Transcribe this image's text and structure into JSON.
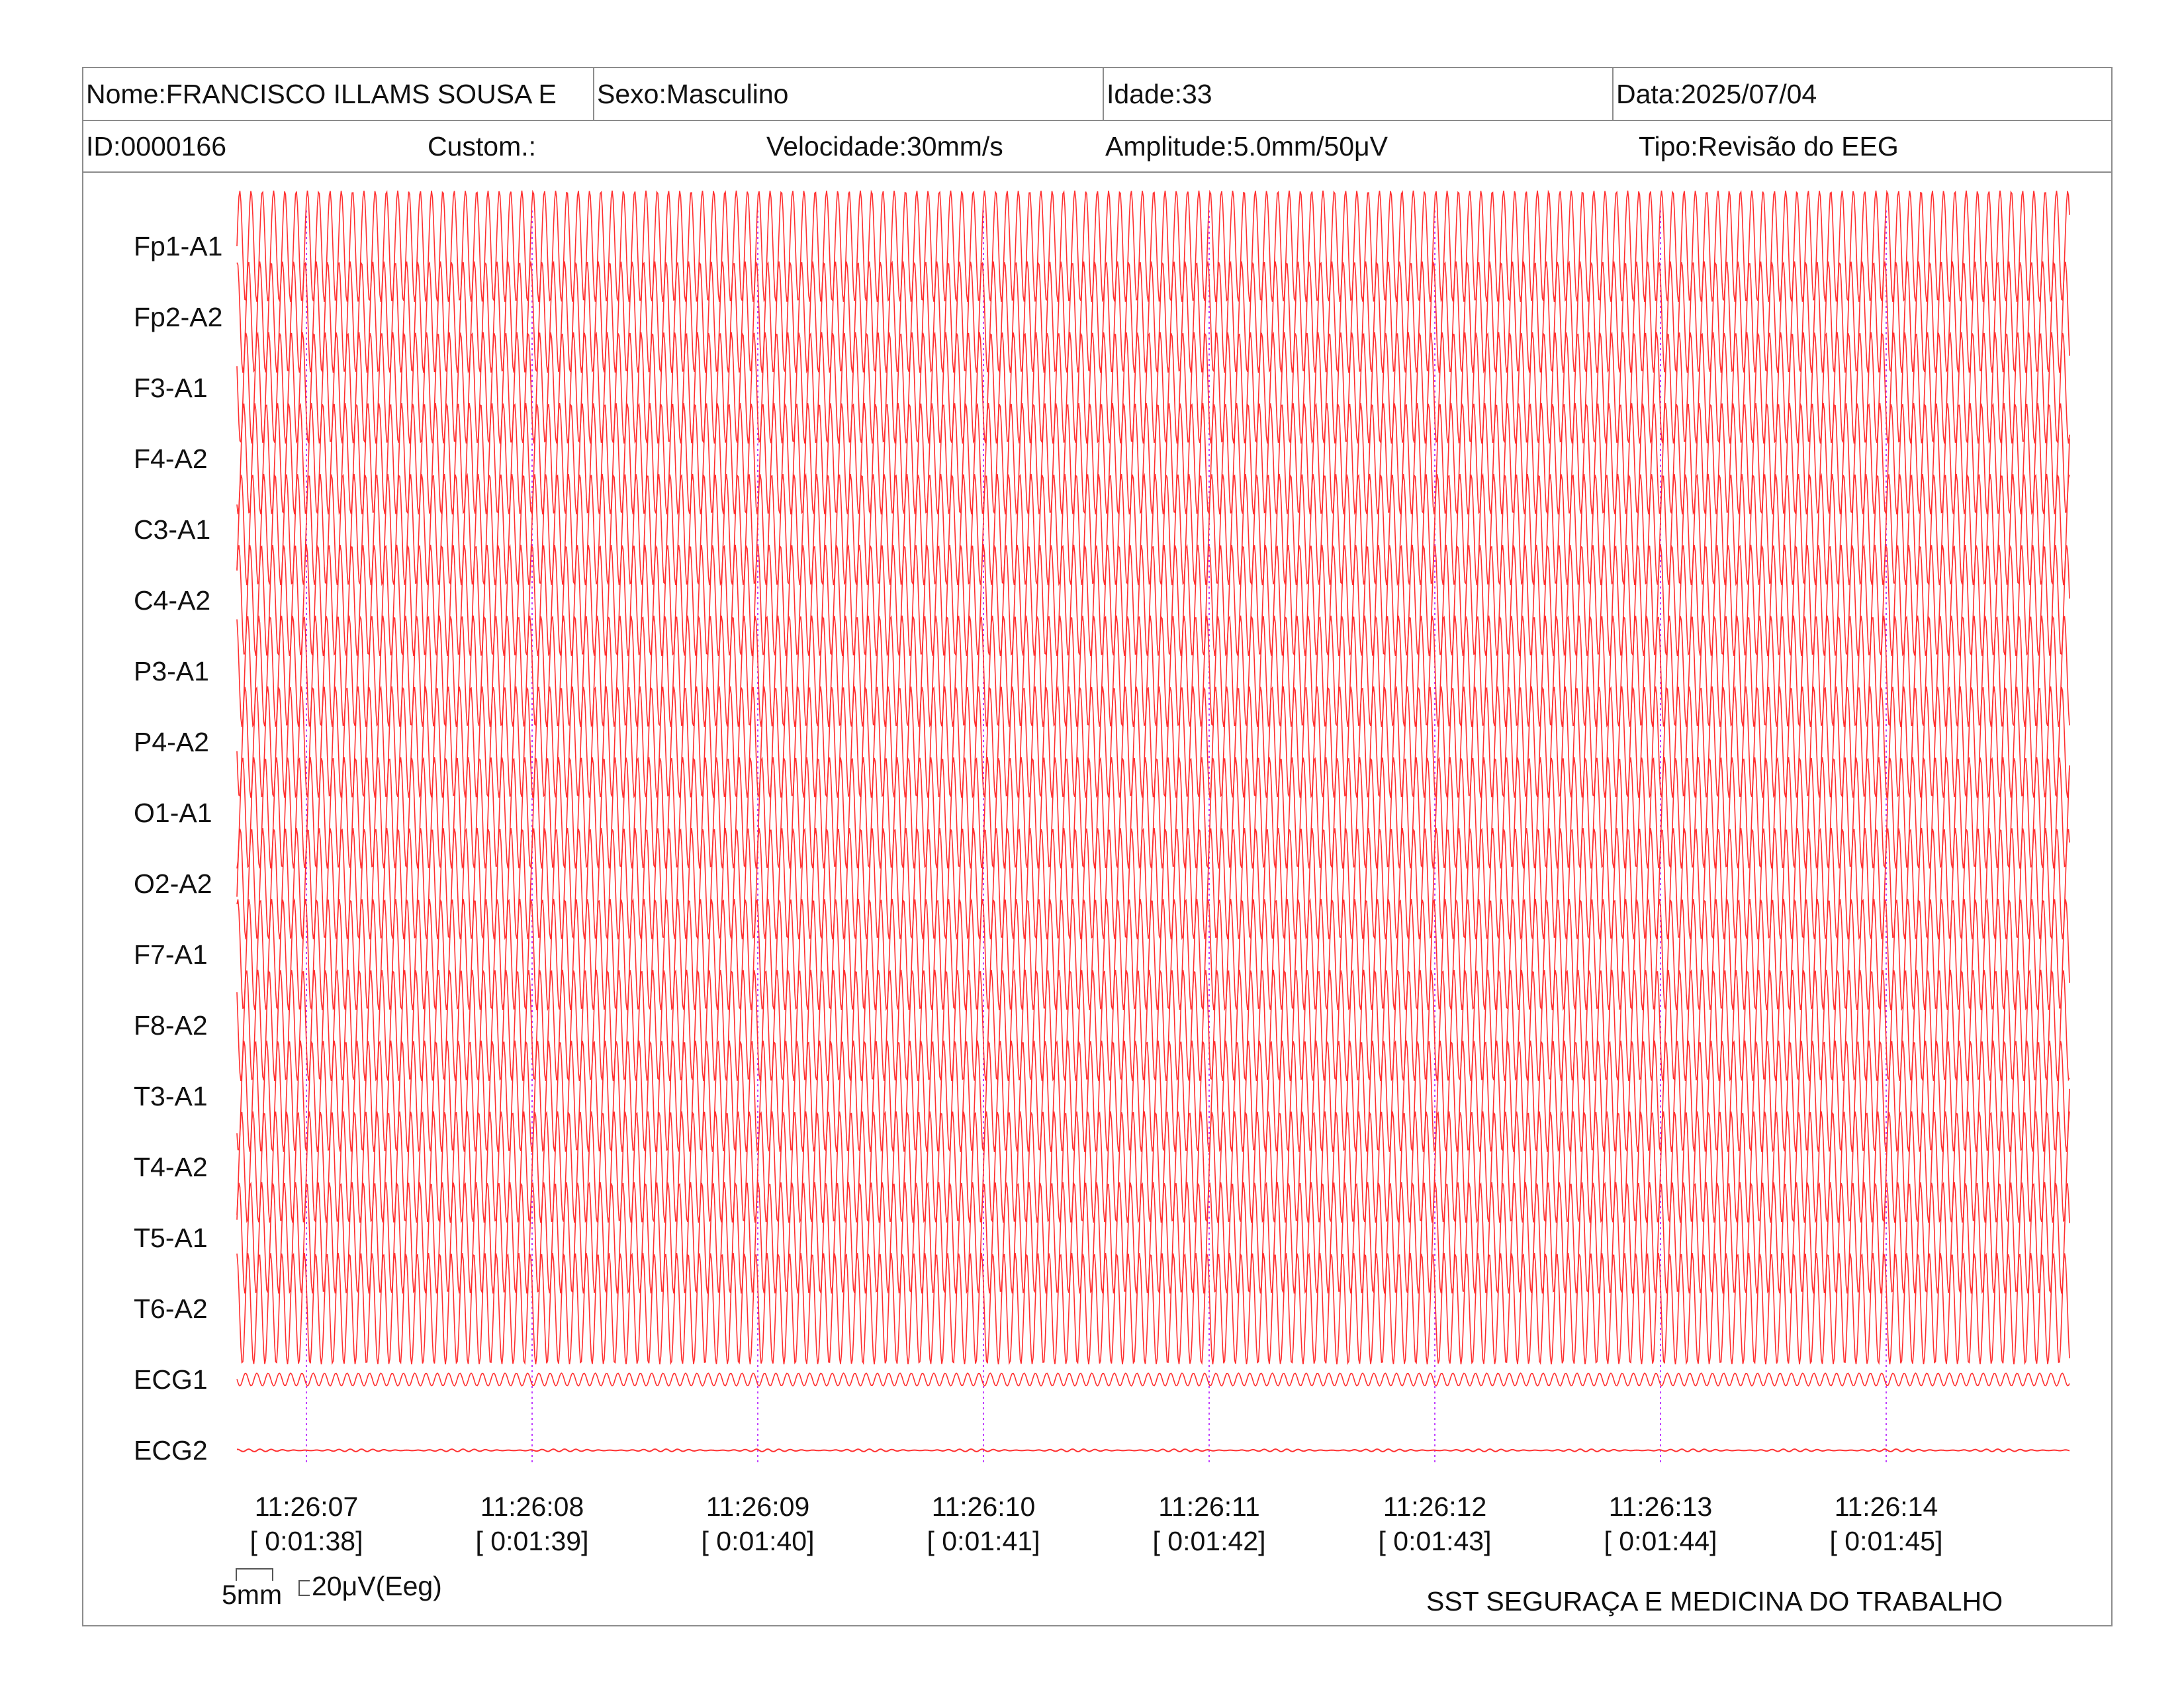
{
  "header": {
    "name": "Nome:FRANCISCO ILLAMS SOUSA E",
    "sex": "Sexo:Masculino",
    "age": "Idade:33",
    "date": "Data:2025/07/04",
    "id": "ID:0000166",
    "custom": "Custom.:",
    "speed": "Velocidade:30mm/s",
    "amplitude": "Amplitude:5.0mm/50μV",
    "type": "Tipo:Revisão do EEG"
  },
  "footer": {
    "scale_time": "5mm",
    "scale_amp": "20μV(Eeg)",
    "company": "SST SEGURAÇA E MEDICINA DO TRABALHO"
  },
  "colors": {
    "trace": "#ff3030",
    "time_marker": "#c040ff",
    "border": "#8c8c8c"
  },
  "chart_data": {
    "type": "line",
    "channels": [
      "Fp1-A1",
      "Fp2-A2",
      "F3-A1",
      "F4-A2",
      "C3-A1",
      "C4-A2",
      "P3-A1",
      "P4-A2",
      "O1-A1",
      "O2-A2",
      "F7-A1",
      "F8-A2",
      "T3-A1",
      "T4-A2",
      "T5-A1",
      "T6-A2",
      "ECG1",
      "ECG2"
    ],
    "time_labels": [
      "11:26:07",
      "11:26:08",
      "11:26:09",
      "11:26:10",
      "11:26:11",
      "11:26:12",
      "11:26:13",
      "11:26:14"
    ],
    "elapsed_labels": [
      "[ 0:01:38]",
      "[ 0:01:39]",
      "[ 0:01:40]",
      "[ 0:01:41]",
      "[ 0:01:42]",
      "[ 0:01:43]",
      "[ 0:01:44]",
      "[ 0:01:45]"
    ],
    "oscillation_cycles_per_second": 20,
    "eeg_amplitude_uV": 350,
    "ecg1_amplitude_uV": 40,
    "ecg2_amplitude_uV": 8
  }
}
